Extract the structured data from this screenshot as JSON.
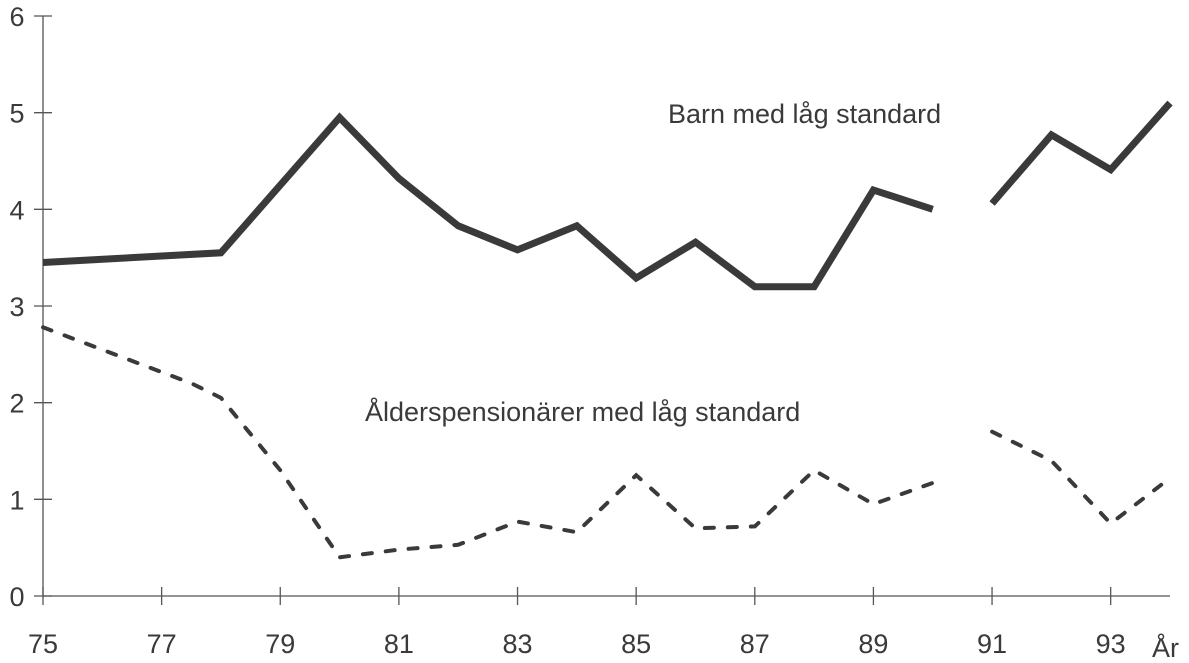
{
  "chart_data": {
    "type": "line",
    "title": "",
    "xlabel": "År",
    "ylabel": "",
    "xlim": [
      75,
      94
    ],
    "ylim": [
      0,
      6
    ],
    "grid": false,
    "xticks": [
      75,
      77,
      79,
      81,
      83,
      85,
      87,
      89,
      91,
      93
    ],
    "xtick_labels": [
      "75",
      "77",
      "79",
      "81",
      "83",
      "85",
      "87",
      "89",
      "91",
      "93"
    ],
    "yticks": [
      0,
      1,
      2,
      3,
      4,
      5,
      6
    ],
    "ytick_labels": [
      "0",
      "1",
      "2",
      "3",
      "4",
      "5",
      "6"
    ],
    "series": [
      {
        "name": "Barn med låg standard",
        "style": "solid-thick",
        "color": "#3a3a3a",
        "segments": [
          {
            "x": [
              75,
              78,
              80,
              81,
              82,
              83,
              84,
              85,
              86,
              87,
              88,
              89,
              90
            ],
            "y": [
              3.45,
              3.55,
              4.95,
              4.32,
              3.83,
              3.58,
              3.83,
              3.29,
              3.66,
              3.2,
              3.2,
              4.2,
              4.0
            ]
          },
          {
            "x": [
              91,
              92,
              93,
              94
            ],
            "y": [
              4.06,
              4.77,
              4.41,
              5.1
            ]
          }
        ]
      },
      {
        "name": "Ålderspensionärer med låg standard",
        "style": "dashed",
        "color": "#3a3a3a",
        "segments": [
          {
            "x": [
              75,
              77.5,
              78,
              79,
              80,
              81,
              82,
              83,
              84,
              85,
              86,
              87,
              88,
              89,
              90
            ],
            "y": [
              2.78,
              2.2,
              2.05,
              1.3,
              0.4,
              0.48,
              0.53,
              0.77,
              0.66,
              1.25,
              0.7,
              0.72,
              1.3,
              0.95,
              1.17
            ]
          },
          {
            "x": [
              91,
              92,
              93,
              94
            ],
            "y": [
              1.7,
              1.4,
              0.75,
              1.22
            ]
          }
        ]
      }
    ]
  }
}
